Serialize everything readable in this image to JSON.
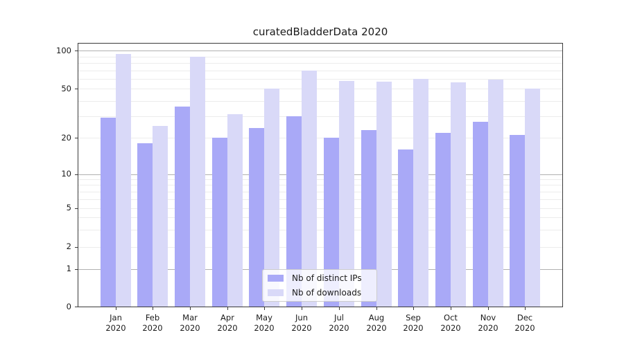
{
  "chart_data": {
    "type": "bar",
    "title": "curatedBladderData 2020",
    "xlabel": "",
    "ylabel": "",
    "yscale": "symlog",
    "ylim": [
      0,
      115
    ],
    "grid": true,
    "legend_position": "lower center",
    "categories": [
      "Jan",
      "Feb",
      "Mar",
      "Apr",
      "May",
      "Jun",
      "Jul",
      "Aug",
      "Sep",
      "Oct",
      "Nov",
      "Dec"
    ],
    "x_tick_year": "2020",
    "yticks": [
      0,
      1,
      2,
      5,
      10,
      20,
      50,
      100
    ],
    "major_gridlines": [
      1,
      10,
      100
    ],
    "minor_gridlines": [
      2,
      3,
      4,
      5,
      6,
      7,
      8,
      9,
      20,
      30,
      40,
      50,
      60,
      70,
      80,
      90
    ],
    "series": [
      {
        "name": "Nb of distinct IPs",
        "color": "#a9a9f7",
        "values": [
          29,
          18,
          36,
          20,
          24,
          30,
          20,
          23,
          16,
          22,
          27,
          21
        ]
      },
      {
        "name": "Nb of downloads",
        "color": "#d9d9f8",
        "values": [
          95,
          25,
          90,
          31,
          50,
          70,
          58,
          57,
          60,
          56,
          59,
          50
        ]
      }
    ]
  },
  "colors": {
    "background": "#ffffff",
    "spine": "#3a3a3a",
    "major_grid": "#b0b0b0",
    "minor_grid": "#ececec",
    "text": "#1a1a1a",
    "legend_border": "#cccccc"
  }
}
